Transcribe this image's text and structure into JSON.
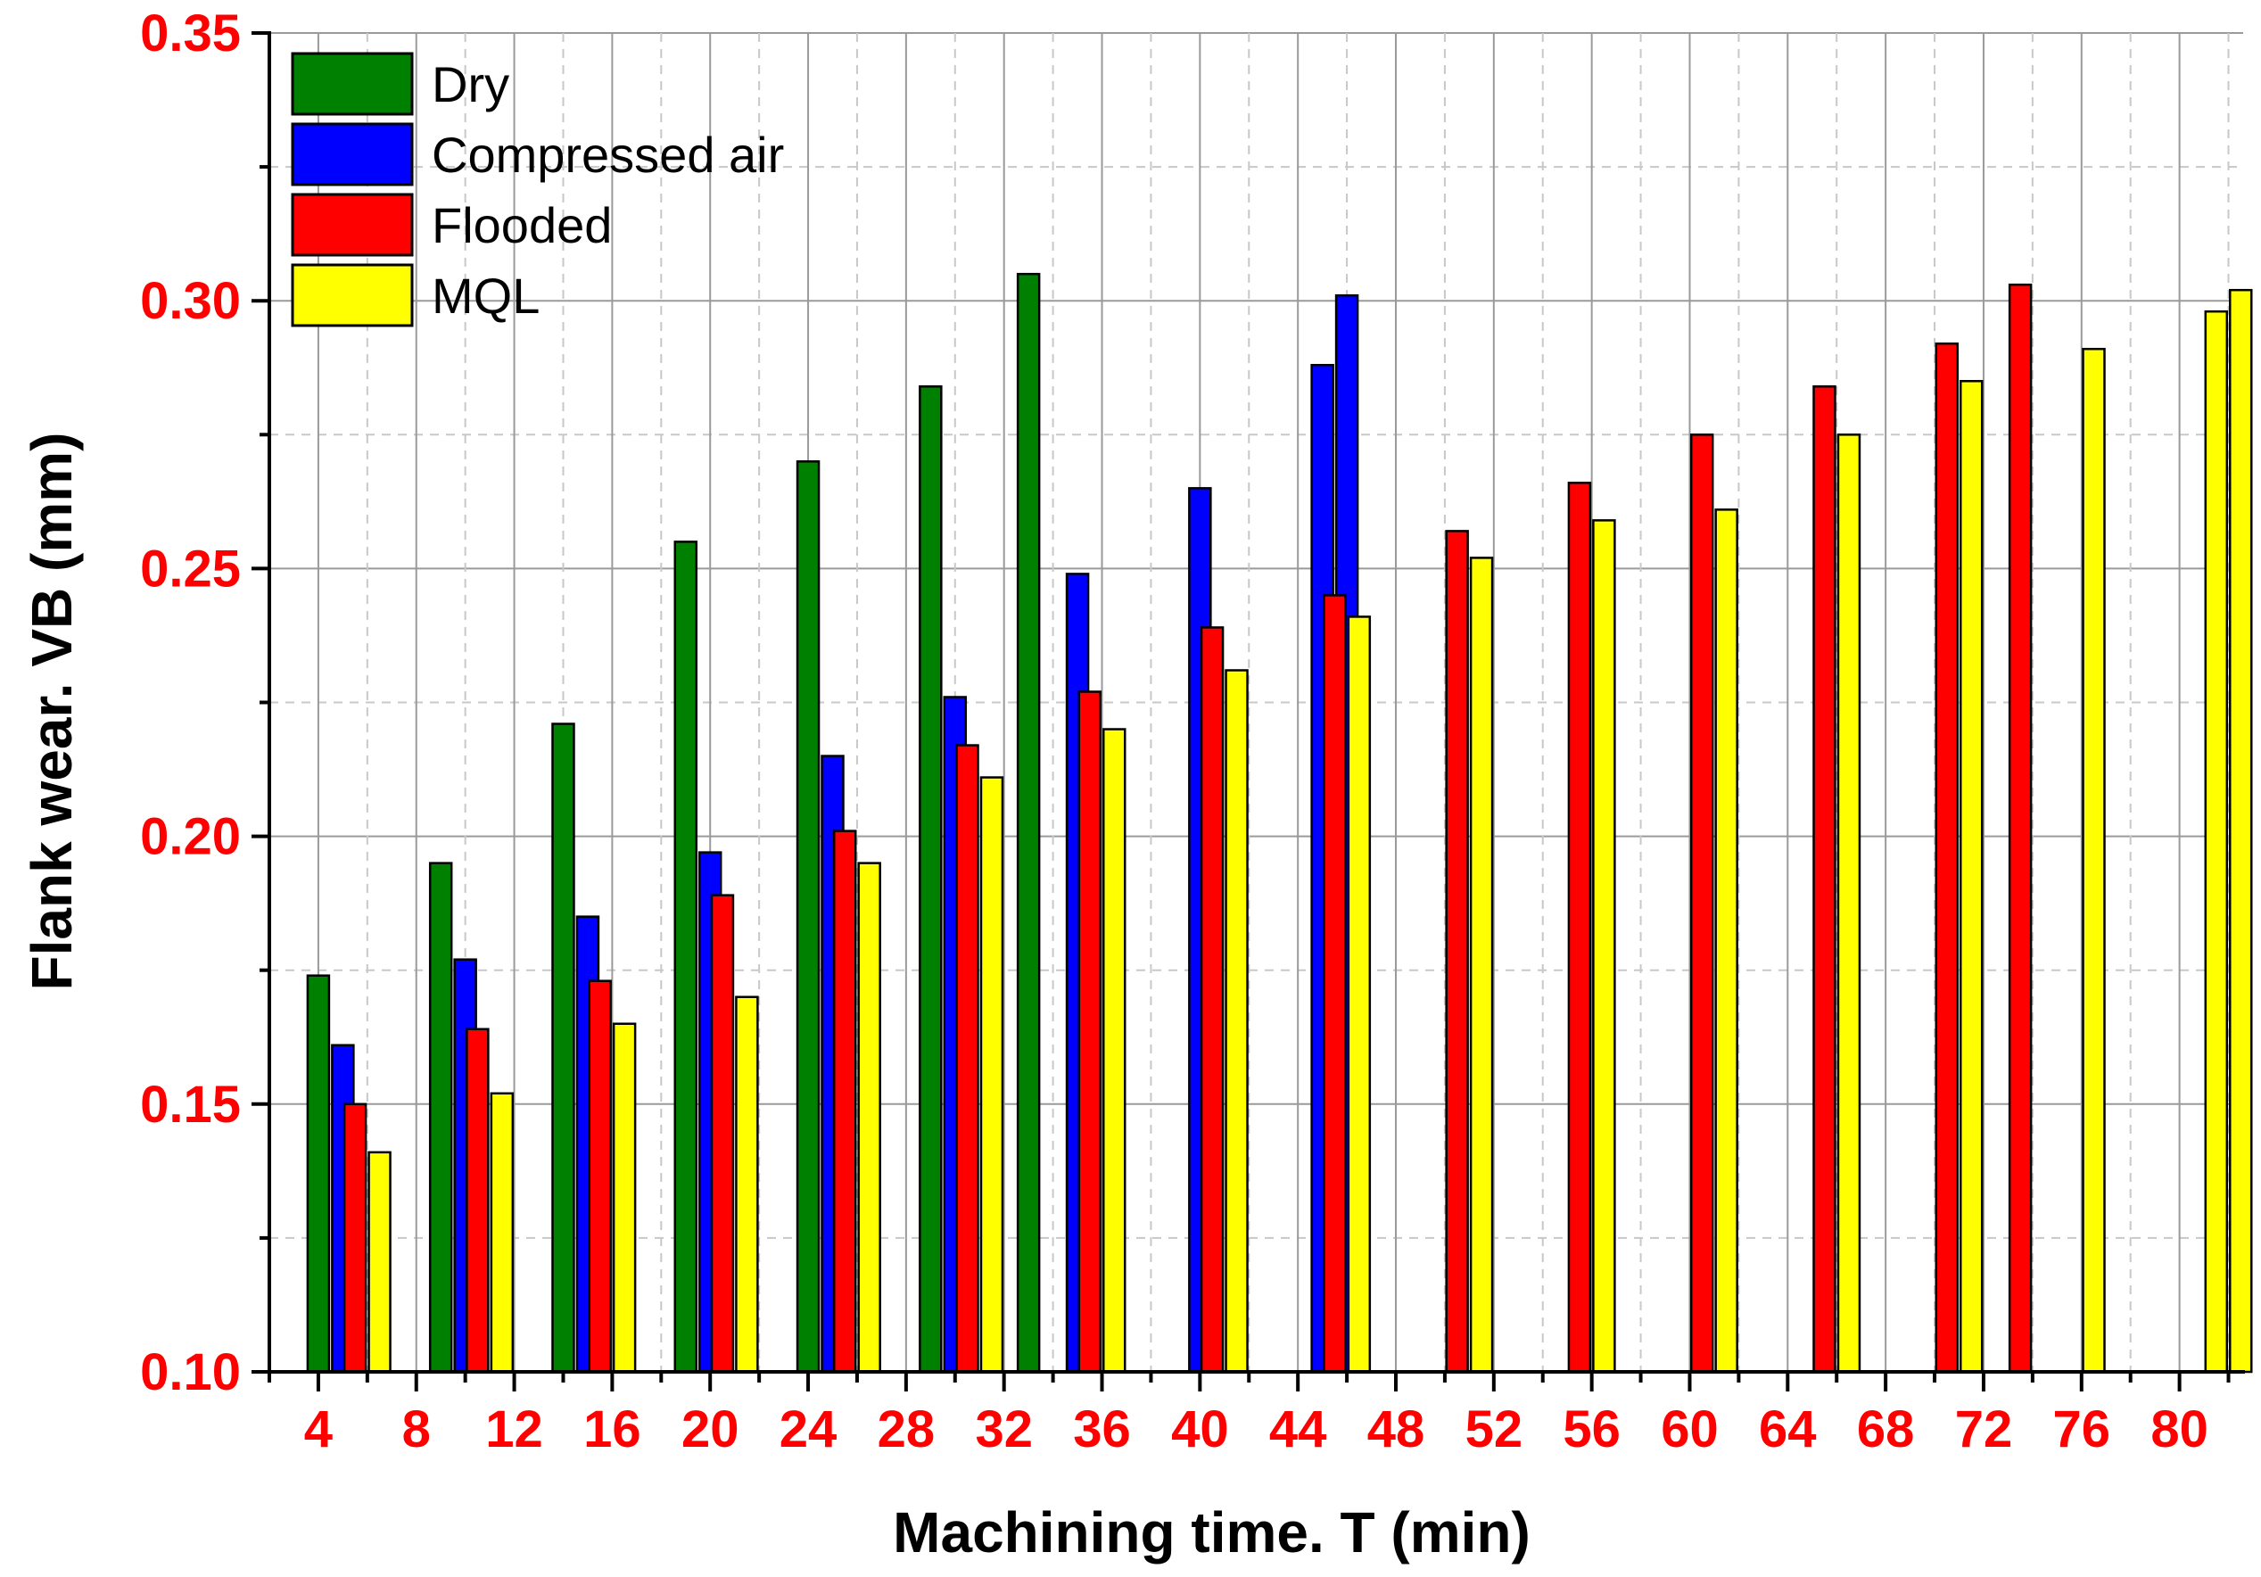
{
  "chart_data": {
    "type": "bar",
    "title": "",
    "xlabel": "Machining time. T (min)",
    "ylabel": "Flank wear. VB (mm)",
    "ylim": [
      0.1,
      0.35
    ],
    "yticks": [
      "0.10",
      "0.15",
      "0.20",
      "0.25",
      "0.30",
      "0.35"
    ],
    "xticks": [
      "4",
      "8",
      "12",
      "16",
      "20",
      "24",
      "28",
      "32",
      "36",
      "40",
      "44",
      "48",
      "52",
      "56",
      "60",
      "64",
      "68",
      "72",
      "76",
      "80"
    ],
    "xlim": [
      2.0,
      82.6
    ],
    "tick_label_color": "#ff0000",
    "grid": true,
    "legend_position": "top-left",
    "series": [
      {
        "name": "Dry",
        "color": "#008000",
        "points": [
          [
            4,
            0.174
          ],
          [
            9,
            0.195
          ],
          [
            14,
            0.221
          ],
          [
            19,
            0.255
          ],
          [
            24,
            0.27
          ],
          [
            29,
            0.284
          ],
          [
            33,
            0.305
          ]
        ]
      },
      {
        "name": "Compressed air",
        "color": "#0000ff",
        "points": [
          [
            5,
            0.161
          ],
          [
            10,
            0.177
          ],
          [
            15,
            0.185
          ],
          [
            20,
            0.197
          ],
          [
            25,
            0.215
          ],
          [
            30,
            0.226
          ],
          [
            35,
            0.249
          ],
          [
            40,
            0.265
          ],
          [
            45,
            0.288
          ],
          [
            46,
            0.301
          ]
        ]
      },
      {
        "name": "Flooded",
        "color": "#ff0000",
        "points": [
          [
            5.5,
            0.15
          ],
          [
            10.5,
            0.164
          ],
          [
            15.5,
            0.173
          ],
          [
            20.5,
            0.189
          ],
          [
            25.5,
            0.201
          ],
          [
            30.5,
            0.217
          ],
          [
            35.5,
            0.227
          ],
          [
            40.5,
            0.239
          ],
          [
            45.5,
            0.245
          ],
          [
            50.5,
            0.257
          ],
          [
            55.5,
            0.266
          ],
          [
            60.5,
            0.275
          ],
          [
            65.5,
            0.284
          ],
          [
            70.5,
            0.292
          ],
          [
            73.5,
            0.303
          ]
        ]
      },
      {
        "name": "MQL",
        "color": "#ffff00",
        "points": [
          [
            6.5,
            0.141
          ],
          [
            11.5,
            0.152
          ],
          [
            16.5,
            0.165
          ],
          [
            21.5,
            0.17
          ],
          [
            26.5,
            0.195
          ],
          [
            31.5,
            0.211
          ],
          [
            36.5,
            0.22
          ],
          [
            41.5,
            0.231
          ],
          [
            46.5,
            0.241
          ],
          [
            51.5,
            0.252
          ],
          [
            56.5,
            0.259
          ],
          [
            61.5,
            0.261
          ],
          [
            66.5,
            0.275
          ],
          [
            71.5,
            0.285
          ],
          [
            76.5,
            0.291
          ],
          [
            81.5,
            0.298
          ],
          [
            82.5,
            0.302
          ]
        ]
      }
    ]
  }
}
